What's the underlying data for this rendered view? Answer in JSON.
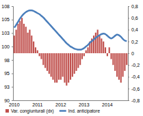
{
  "chart_data": {
    "type": "bar",
    "categories": [
      "2010",
      null,
      null,
      null,
      null,
      null,
      null,
      null,
      null,
      null,
      null,
      null,
      "2011",
      null,
      null,
      null,
      null,
      null,
      null,
      null,
      null,
      null,
      null,
      null,
      "2012",
      null,
      null,
      null,
      null,
      null,
      null,
      null,
      null,
      null,
      null,
      null,
      "2013",
      null,
      null,
      null,
      null,
      null,
      null,
      null,
      null,
      null,
      null,
      null,
      "2014",
      null,
      null,
      null,
      null,
      null,
      null,
      null,
      null,
      null,
      null
    ],
    "series": [
      {
        "name": "Var. congiunturali (dx)",
        "type": "bar",
        "color": "#c0504d",
        "axis": "y2",
        "values": [
          0.3,
          0.4,
          0.5,
          0.55,
          0.6,
          0.5,
          0.45,
          0.35,
          0.4,
          0.3,
          0.2,
          0.1,
          0.05,
          -0.05,
          -0.1,
          -0.2,
          -0.25,
          -0.3,
          -0.35,
          -0.4,
          -0.45,
          -0.5,
          -0.5,
          -0.45,
          -0.45,
          -0.4,
          -0.5,
          -0.55,
          -0.5,
          -0.45,
          -0.4,
          -0.35,
          -0.3,
          -0.25,
          -0.2,
          -0.1,
          -0.05,
          0.05,
          0.1,
          0.2,
          0.25,
          0.3,
          0.35,
          0.4,
          0.3,
          0.25,
          0.2,
          0.1,
          -0.05,
          0.1,
          -0.1,
          -0.2,
          -0.3,
          -0.4,
          -0.45,
          -0.5,
          -0.4,
          -0.3,
          -0.2
        ]
      },
      {
        "name": "Ind. anticipatore",
        "type": "line",
        "color": "#4a7ebb",
        "values": [
          103.5,
          104,
          104.6,
          105.2,
          105.7,
          106.1,
          106.4,
          106.6,
          106.7,
          106.7,
          106.6,
          106.4,
          106.2,
          106,
          105.7,
          105.4,
          105,
          104.6,
          104.2,
          103.8,
          103.4,
          103,
          102.6,
          102.2,
          101.8,
          101.4,
          101,
          100.6,
          100.3,
          100,
          99.8,
          99.6,
          99.5,
          99.4,
          99.4,
          99.5,
          99.7,
          100,
          100.3,
          100.7,
          101,
          101.3,
          101.6,
          101.9,
          102.1,
          102.3,
          102.4,
          102.3,
          102,
          101.7,
          101.5,
          101.7,
          102,
          102.2,
          102.1,
          101.8,
          101.4,
          101.1,
          101
        ]
      }
    ],
    "ylim": [
      90,
      107.5
    ],
    "yticks": [
      90,
      {
        "value": 92.5,
        "label": "93"
      },
      95,
      {
        "value": 97.5,
        "label": "98"
      },
      100,
      {
        "value": 102.5,
        "label": "103"
      },
      105,
      {
        "value": 107.5,
        "label": "108"
      }
    ],
    "y2lim": [
      -0.8,
      0.8
    ],
    "y2ticks": [
      {
        "value": -0.8,
        "label": "-0,8"
      },
      {
        "value": -0.6,
        "label": "-0,6"
      },
      {
        "value": -0.4,
        "label": "-0,4"
      },
      {
        "value": -0.2,
        "label": "-0,2"
      },
      0,
      {
        "value": 0.2,
        "label": "0,2"
      },
      {
        "value": 0.4,
        "label": "0,4"
      },
      {
        "value": 0.6,
        "label": "0,6"
      },
      {
        "value": 0.8,
        "label": "0,8"
      }
    ],
    "legend": "bottom"
  }
}
